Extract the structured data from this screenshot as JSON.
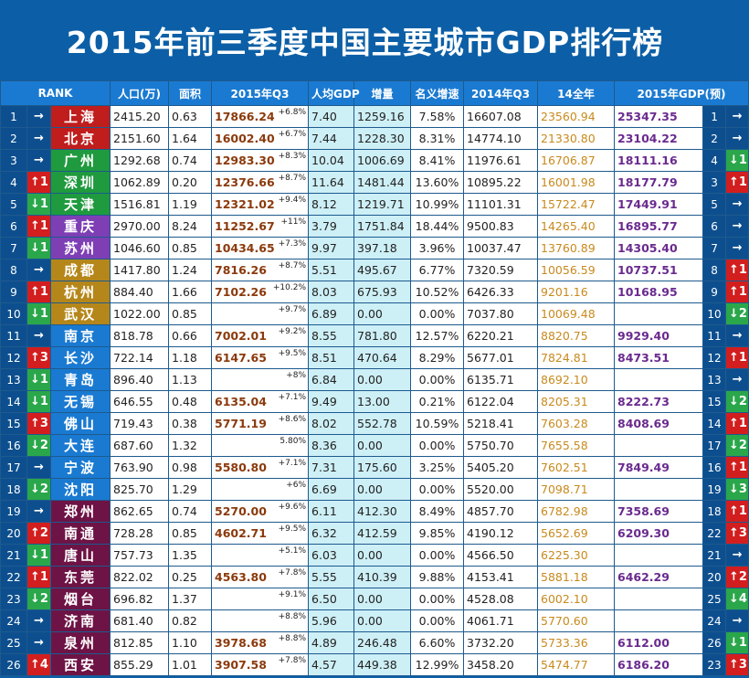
{
  "title": "2015年前三季度中国主要城市GDP排行榜",
  "headers": [
    "RANK",
    "人口(万)",
    "面积",
    "2015年Q3",
    "人均GDP",
    "增量",
    "名义增速",
    "2014年Q3",
    "14全年",
    "2015年GDP(预)"
  ],
  "colors": {
    "same": "#0d4f8e",
    "up": "#d21e1e",
    "down": "#2aa74a"
  },
  "rows": [
    {
      "rank": "1",
      "ch": "→",
      "dir": "same",
      "city": "上海",
      "color": "#c01d1d",
      "pop": "2415.20",
      "area": "0.63",
      "q3": "17866.24",
      "g": "+6.8%",
      "pc": "7.40",
      "inc": "1259.16",
      "rate": "7.58%",
      "q314": "16607.08",
      "y14": "23560.94",
      "pred": "25347.35",
      "rk2": "1",
      "ch2": "→",
      "dir2": "same"
    },
    {
      "rank": "2",
      "ch": "→",
      "dir": "same",
      "city": "北京",
      "color": "#c01d1d",
      "pop": "2151.60",
      "area": "1.64",
      "q3": "16002.40",
      "g": "+6.7%",
      "pc": "7.44",
      "inc": "1228.30",
      "rate": "8.31%",
      "q314": "14774.10",
      "y14": "21330.80",
      "pred": "23104.22",
      "rk2": "2",
      "ch2": "→",
      "dir2": "same"
    },
    {
      "rank": "3",
      "ch": "→",
      "dir": "same",
      "city": "广州",
      "color": "#1f9a3e",
      "pop": "1292.68",
      "area": "0.74",
      "q3": "12983.30",
      "g": "+8.3%",
      "pc": "10.04",
      "inc": "1006.69",
      "rate": "8.41%",
      "q314": "11976.61",
      "y14": "16706.87",
      "pred": "18111.16",
      "rk2": "4",
      "ch2": "↓1",
      "dir2": "down"
    },
    {
      "rank": "4",
      "ch": "↑1",
      "dir": "up",
      "city": "深圳",
      "color": "#1f9a3e",
      "pop": "1062.89",
      "area": "0.20",
      "q3": "12376.66",
      "g": "+8.7%",
      "pc": "11.64",
      "inc": "1481.44",
      "rate": "13.60%",
      "q314": "10895.22",
      "y14": "16001.98",
      "pred": "18177.79",
      "rk2": "3",
      "ch2": "↑1",
      "dir2": "up"
    },
    {
      "rank": "5",
      "ch": "↓1",
      "dir": "down",
      "city": "天津",
      "color": "#1f9a3e",
      "pop": "1516.81",
      "area": "1.19",
      "q3": "12321.02",
      "g": "+9.4%",
      "pc": "8.12",
      "inc": "1219.71",
      "rate": "10.99%",
      "q314": "11101.31",
      "y14": "15722.47",
      "pred": "17449.91",
      "rk2": "5",
      "ch2": "→",
      "dir2": "same"
    },
    {
      "rank": "6",
      "ch": "↑1",
      "dir": "up",
      "city": "重庆",
      "color": "#7e3fb5",
      "pop": "2970.00",
      "area": "8.24",
      "q3": "11252.67",
      "g": "+11%",
      "pc": "3.79",
      "inc": "1751.84",
      "rate": "18.44%",
      "q314": "9500.83",
      "y14": "14265.40",
      "pred": "16895.77",
      "rk2": "6",
      "ch2": "→",
      "dir2": "same"
    },
    {
      "rank": "7",
      "ch": "↓1",
      "dir": "down",
      "city": "苏州",
      "color": "#7e3fb5",
      "pop": "1046.60",
      "area": "0.85",
      "q3": "10434.65",
      "g": "+7.3%",
      "pc": "9.97",
      "inc": "397.18",
      "rate": "3.96%",
      "q314": "10037.47",
      "y14": "13760.89",
      "pred": "14305.40",
      "rk2": "7",
      "ch2": "→",
      "dir2": "same"
    },
    {
      "rank": "8",
      "ch": "→",
      "dir": "same",
      "city": "成都",
      "color": "#b5871a",
      "pop": "1417.80",
      "area": "1.24",
      "q3": "7816.26",
      "g": "+8.7%",
      "pc": "5.51",
      "inc": "495.67",
      "rate": "6.77%",
      "q314": "7320.59",
      "y14": "10056.59",
      "pred": "10737.51",
      "rk2": "8",
      "ch2": "↑1",
      "dir2": "up"
    },
    {
      "rank": "9",
      "ch": "↑1",
      "dir": "up",
      "city": "杭州",
      "color": "#b5871a",
      "pop": "884.40",
      "area": "1.66",
      "q3": "7102.26",
      "g": "+10.2%",
      "pc": "8.03",
      "inc": "675.93",
      "rate": "10.52%",
      "q314": "6426.33",
      "y14": "9201.16",
      "pred": "10168.95",
      "rk2": "9",
      "ch2": "↑1",
      "dir2": "up"
    },
    {
      "rank": "10",
      "ch": "↓1",
      "dir": "down",
      "city": "武汉",
      "color": "#b5871a",
      "pop": "1022.00",
      "area": "0.85",
      "q3": "",
      "g": "+9.7%",
      "pc": "6.89",
      "inc": "0.00",
      "rate": "0.00%",
      "q314": "7037.80",
      "y14": "10069.48",
      "pred": "",
      "rk2": "10",
      "ch2": "↓2",
      "dir2": "down"
    },
    {
      "rank": "11",
      "ch": "→",
      "dir": "same",
      "city": "南京",
      "color": "#1a7ad1",
      "pop": "818.78",
      "area": "0.66",
      "q3": "7002.01",
      "g": "+9.2%",
      "pc": "8.55",
      "inc": "781.80",
      "rate": "12.57%",
      "q314": "6220.21",
      "y14": "8820.75",
      "pred": "9929.40",
      "rk2": "11",
      "ch2": "→",
      "dir2": "same"
    },
    {
      "rank": "12",
      "ch": "↑3",
      "dir": "up",
      "city": "长沙",
      "color": "#1a7ad1",
      "pop": "722.14",
      "area": "1.18",
      "q3": "6147.65",
      "g": "+9.5%",
      "pc": "8.51",
      "inc": "470.64",
      "rate": "8.29%",
      "q314": "5677.01",
      "y14": "7824.81",
      "pred": "8473.51",
      "rk2": "12",
      "ch2": "↑1",
      "dir2": "up"
    },
    {
      "rank": "13",
      "ch": "↓1",
      "dir": "down",
      "city": "青岛",
      "color": "#1a7ad1",
      "pop": "896.40",
      "area": "1.13",
      "q3": "",
      "g": "+8%",
      "pc": "6.84",
      "inc": "0.00",
      "rate": "0.00%",
      "q314": "6135.71",
      "y14": "8692.10",
      "pred": "",
      "rk2": "13",
      "ch2": "→",
      "dir2": "same"
    },
    {
      "rank": "14",
      "ch": "↓1",
      "dir": "down",
      "city": "无锡",
      "color": "#1a7ad1",
      "pop": "646.55",
      "area": "0.48",
      "q3": "6135.04",
      "g": "+7.1%",
      "pc": "9.49",
      "inc": "13.00",
      "rate": "0.21%",
      "q314": "6122.04",
      "y14": "8205.31",
      "pred": "8222.73",
      "rk2": "15",
      "ch2": "↓2",
      "dir2": "down"
    },
    {
      "rank": "15",
      "ch": "↑3",
      "dir": "up",
      "city": "佛山",
      "color": "#1a7ad1",
      "pop": "719.43",
      "area": "0.38",
      "q3": "5771.19",
      "g": "+8.6%",
      "pc": "8.02",
      "inc": "552.78",
      "rate": "10.59%",
      "q314": "5218.41",
      "y14": "7603.28",
      "pred": "8408.69",
      "rk2": "14",
      "ch2": "↑1",
      "dir2": "up"
    },
    {
      "rank": "16",
      "ch": "↓2",
      "dir": "down",
      "city": "大连",
      "color": "#1a7ad1",
      "pop": "687.60",
      "area": "1.32",
      "q3": "",
      "g": "5.80%",
      "pc": "8.36",
      "inc": "0.00",
      "rate": "0.00%",
      "q314": "5750.70",
      "y14": "7655.58",
      "pred": "",
      "rk2": "17",
      "ch2": "↓2",
      "dir2": "down"
    },
    {
      "rank": "17",
      "ch": "→",
      "dir": "same",
      "city": "宁波",
      "color": "#1a7ad1",
      "pop": "763.90",
      "area": "0.98",
      "q3": "5580.80",
      "g": "+7.1%",
      "pc": "7.31",
      "inc": "175.60",
      "rate": "3.25%",
      "q314": "5405.20",
      "y14": "7602.51",
      "pred": "7849.49",
      "rk2": "16",
      "ch2": "↑1",
      "dir2": "up"
    },
    {
      "rank": "18",
      "ch": "↓2",
      "dir": "down",
      "city": "沈阳",
      "color": "#1a7ad1",
      "pop": "825.70",
      "area": "1.29",
      "q3": "",
      "g": "+6%",
      "pc": "6.69",
      "inc": "0.00",
      "rate": "0.00%",
      "q314": "5520.00",
      "y14": "7098.71",
      "pred": "",
      "rk2": "19",
      "ch2": "↓3",
      "dir2": "down"
    },
    {
      "rank": "19",
      "ch": "→",
      "dir": "same",
      "city": "郑州",
      "color": "#6e1345",
      "pop": "862.65",
      "area": "0.74",
      "q3": "5270.00",
      "g": "+9.6%",
      "pc": "6.11",
      "inc": "412.30",
      "rate": "8.49%",
      "q314": "4857.70",
      "y14": "6782.98",
      "pred": "7358.69",
      "rk2": "18",
      "ch2": "↑1",
      "dir2": "up"
    },
    {
      "rank": "20",
      "ch": "↑2",
      "dir": "up",
      "city": "南通",
      "color": "#6e1345",
      "pop": "728.28",
      "area": "0.85",
      "q3": "4602.71",
      "g": "+9.5%",
      "pc": "6.32",
      "inc": "412.59",
      "rate": "9.85%",
      "q314": "4190.12",
      "y14": "5652.69",
      "pred": "6209.30",
      "rk2": "22",
      "ch2": "↑3",
      "dir2": "up"
    },
    {
      "rank": "21",
      "ch": "↓1",
      "dir": "down",
      "city": "唐山",
      "color": "#6e1345",
      "pop": "757.73",
      "area": "1.35",
      "q3": "",
      "g": "+5.1%",
      "pc": "6.03",
      "inc": "0.00",
      "rate": "0.00%",
      "q314": "4566.50",
      "y14": "6225.30",
      "pred": "",
      "rk2": "21",
      "ch2": "→",
      "dir2": "same"
    },
    {
      "rank": "22",
      "ch": "↑1",
      "dir": "up",
      "city": "东莞",
      "color": "#6e1345",
      "pop": "822.02",
      "area": "0.25",
      "q3": "4563.80",
      "g": "+7.8%",
      "pc": "5.55",
      "inc": "410.39",
      "rate": "9.88%",
      "q314": "4153.41",
      "y14": "5881.18",
      "pred": "6462.29",
      "rk2": "20",
      "ch2": "↑2",
      "dir2": "up"
    },
    {
      "rank": "23",
      "ch": "↓2",
      "dir": "down",
      "city": "烟台",
      "color": "#6e1345",
      "pop": "696.82",
      "area": "1.37",
      "q3": "",
      "g": "+9.1%",
      "pc": "6.50",
      "inc": "0.00",
      "rate": "0.00%",
      "q314": "4528.08",
      "y14": "6002.10",
      "pred": "",
      "rk2": "25",
      "ch2": "↓4",
      "dir2": "down"
    },
    {
      "rank": "24",
      "ch": "→",
      "dir": "same",
      "city": "济南",
      "color": "#6e1345",
      "pop": "681.40",
      "area": "0.82",
      "q3": "",
      "g": "+8.8%",
      "pc": "5.96",
      "inc": "0.00",
      "rate": "0.00%",
      "q314": "4061.71",
      "y14": "5770.60",
      "pred": "",
      "rk2": "24",
      "ch2": "→",
      "dir2": "same"
    },
    {
      "rank": "25",
      "ch": "→",
      "dir": "same",
      "city": "泉州",
      "color": "#6e1345",
      "pop": "812.85",
      "area": "1.10",
      "q3": "3978.68",
      "g": "+8.8%",
      "pc": "4.89",
      "inc": "246.48",
      "rate": "6.60%",
      "q314": "3732.20",
      "y14": "5733.36",
      "pred": "6112.00",
      "rk2": "26",
      "ch2": "↓1",
      "dir2": "down"
    },
    {
      "rank": "26",
      "ch": "↑4",
      "dir": "up",
      "city": "西安",
      "color": "#6e1345",
      "pop": "855.29",
      "area": "1.01",
      "q3": "3907.58",
      "g": "+7.8%",
      "pc": "4.57",
      "inc": "449.38",
      "rate": "12.99%",
      "q314": "3458.20",
      "y14": "5474.77",
      "pred": "6186.20",
      "rk2": "23",
      "ch2": "↑3",
      "dir2": "up"
    }
  ]
}
